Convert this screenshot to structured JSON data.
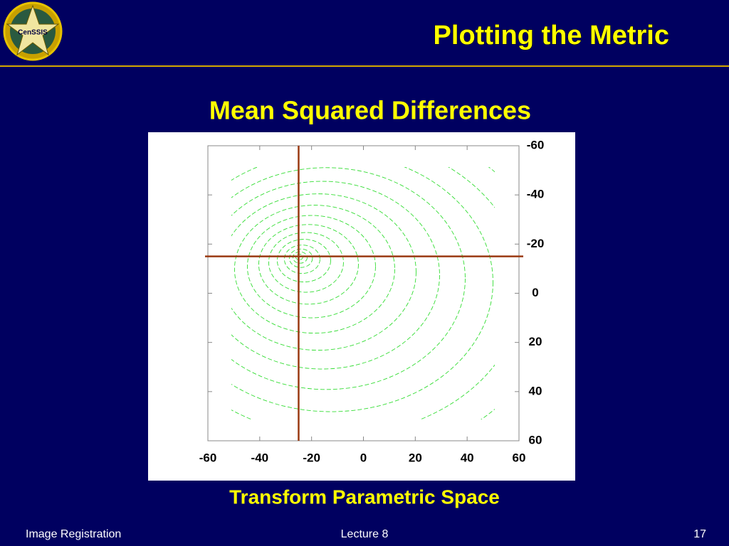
{
  "header": {
    "title": "Plotting the Metric",
    "logo_text": "CenSSIS"
  },
  "chart_data": {
    "type": "contour",
    "title": "Mean Squared Differences",
    "xlabel": "Transform Parametric Space",
    "xlim": [
      -60,
      60
    ],
    "xticks": [
      -60,
      -40,
      -20,
      0,
      20,
      40,
      60
    ],
    "ylim": [
      60,
      -60
    ],
    "yticks": [
      -60,
      -40,
      -20,
      0,
      20,
      40,
      60
    ],
    "crosshair_x": -25,
    "crosshair_y": -15,
    "color": "#33dd33",
    "crosshair_color": "#9a3a12"
  },
  "footer": {
    "left": "Image Registration",
    "center": "Lecture 8",
    "right": "17"
  }
}
